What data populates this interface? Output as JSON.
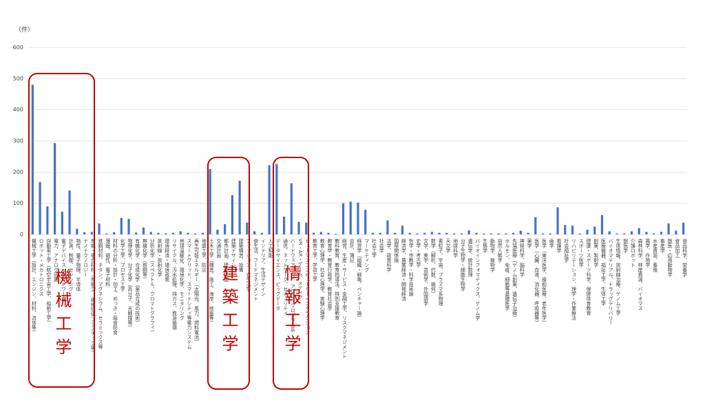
{
  "chart_data": {
    "type": "bar",
    "y_axis_label": "（件）",
    "color": "#4472c4",
    "ylim": [
      0,
      600
    ],
    "yticks": [
      0,
      100,
      200,
      300,
      400,
      500,
      600
    ],
    "grid": true,
    "categories": [
      "機械工学（設計、エンジン、材料、流体等）",
      "ロボット・メカトロニクス",
      "自動車工学（航空宇宙工学、船舶工学）",
      "電力、アナログ回路",
      "電子デバイス・ネットワーク",
      "計測、制御、センシング",
      "物性、量子物理、半導体",
      "ナノテクノロジー",
      "有機・複合材料（有機EL、繊維強化プラスチック等）",
      "鉄鋼材料、チタン、マグネシウム、セラミックス等",
      "薄膜、磁性、電子材料",
      "材料の分析・設計・加工、めっき・腐食防食",
      "化学工学、プロセス工学",
      "物理化学、分子化学（高分子、光触媒等）",
      "有機化学、合成化学（薬品合成の技術）",
      "無機化学（鉄鋼等）",
      "分析化学（スペクトル、クロマトグラフィ）",
      "放射線・放射化学",
      "環境経済・環境政策",
      "リサイクル、汚水処理、排ガス、資源循環",
      "地球温暖化、環境化学、モニタリング",
      "スマートグリッド、スマートシティ等電力システム",
      "再生可能エネルギー（太陽光、風力、燃料電池）",
      "地震工学、防災",
      "土木工学（構造、施工、海岸、地盤等）",
      "交通計画",
      "都市計画、建築計画",
      "建築デザイン",
      "建築構造、設備",
      "ファッション、衣生活学",
      "食生活、フードマネジメント",
      "インテリア、生活デザイン",
      "人工知能",
      "データサイエンス、ビッグデータ",
      "通信、ネットワーク、セキュリティ",
      "ハードウェア、OS、アプリ、プログラム系",
      "VR・AR・ゲーム、メディア",
      "ヒューマンコンピューターインタラクション",
      "教育工学、学習工学",
      "教育心理学、社会心理学、実験心理学",
      "教育学・教育行政学、教育社会学",
      "教科教育、教育指導法、特別支援教育",
      "経営、生産・サービス・金融工学、リスクマネジメント",
      "会計、簿記",
      "経営学（組織・戦略、ベンチャー論）",
      "マーケティング",
      "社会工学",
      "社会学",
      "法学、政策科学",
      "国際関係論",
      "経済学、農業経済・開発経済",
      "哲学・宗教学・科学技術論",
      "史学・考古学",
      "文学、美学、芸術学、外国語学",
      "数学（解析、代数、幾何）",
      "素粒子、宇宙、プラズマ系物理",
      "天文学",
      "地球科学",
      "分子生物学・細胞生物学",
      "遺伝学、統計数理",
      "バイオインフォマティクス、ゲノム学",
      "生態学",
      "動物学、植物学",
      "自然人類学",
      "ホルモン、免疫、細胞等基礎医学",
      "先端医療（ゲノム創薬、遺伝子治療）",
      "神経科学、脳科学",
      "薬学",
      "医学（心臓、血液、消化器、呼吸器等）",
      "医学（東洋医学、緩和医療、老年医学）",
      "歯学",
      "看護学",
      "社会福祉学",
      "リハビリテーション、理学・作業療法",
      "スポーツ医学",
      "健康・スポーツ科学、保健体育教育",
      "創薬、製剤学",
      "医療機器、福祉工学、生体工学",
      "バイオマテリアル、ドラッグデリバリー",
      "生体情報、放射線治療、ゲノム工学",
      "獣医学",
      "介護ロボット",
      "森林科学、林産資源、バイオマス",
      "農学、作物学",
      "水産資源、養殖",
      "畜産学",
      "獣医・応用動物学",
      "食品加工",
      "食品科学、栄養学"
    ],
    "values": [
      480,
      168,
      90,
      293,
      73,
      141,
      18,
      7,
      8,
      35,
      3,
      7,
      53,
      50,
      6,
      22,
      8,
      5,
      3,
      5,
      10,
      5,
      3,
      5,
      210,
      15,
      33,
      126,
      172,
      38,
      10,
      5,
      222,
      226,
      57,
      164,
      40,
      38,
      5,
      8,
      5,
      2,
      100,
      105,
      102,
      79,
      5,
      5,
      45,
      5,
      28,
      5,
      3,
      5,
      8,
      5,
      5,
      3,
      3,
      13,
      5,
      3,
      3,
      3,
      3,
      5,
      12,
      5,
      55,
      3,
      3,
      87,
      30,
      28,
      3,
      15,
      25,
      62,
      10,
      3,
      3,
      10,
      20,
      8,
      3,
      8,
      35,
      12,
      38
    ],
    "annotations": [
      "機械工学",
      "建築工学",
      "情報工学"
    ]
  }
}
